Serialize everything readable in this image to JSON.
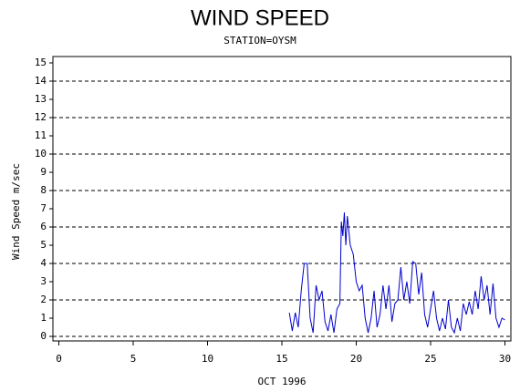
{
  "chart_data": {
    "type": "line",
    "title": "WIND SPEED",
    "subtitle": "STATION=OYSM",
    "ylabel": "Wind Speed m/sec",
    "xlabel": "OCT 1996",
    "xlim": [
      -0.4,
      30.4
    ],
    "ylim": [
      -0.25,
      15.35
    ],
    "xticks": [
      0,
      5,
      10,
      15,
      20,
      25,
      30
    ],
    "yticks": [
      0,
      1,
      2,
      3,
      4,
      5,
      6,
      7,
      8,
      9,
      10,
      11,
      12,
      13,
      14,
      15
    ],
    "ygrid": [
      0,
      2,
      4,
      6,
      8,
      10,
      12,
      14
    ],
    "x": [
      15.5,
      15.7,
      15.9,
      16.1,
      16.3,
      16.5,
      16.7,
      16.9,
      17.1,
      17.3,
      17.5,
      17.7,
      17.9,
      18.1,
      18.3,
      18.5,
      18.7,
      18.9,
      19.0,
      19.1,
      19.2,
      19.3,
      19.4,
      19.6,
      19.8,
      20.0,
      20.2,
      20.4,
      20.6,
      20.8,
      21.0,
      21.2,
      21.4,
      21.6,
      21.8,
      22.0,
      22.2,
      22.4,
      22.6,
      22.8,
      23.0,
      23.2,
      23.4,
      23.6,
      23.8,
      24.0,
      24.2,
      24.4,
      24.6,
      24.8,
      25.0,
      25.2,
      25.4,
      25.6,
      25.8,
      26.0,
      26.2,
      26.4,
      26.6,
      26.8,
      27.0,
      27.2,
      27.4,
      27.6,
      27.8,
      28.0,
      28.2,
      28.4,
      28.6,
      28.8,
      29.0,
      29.2,
      29.4,
      29.6,
      29.8,
      30.0
    ],
    "series": [
      {
        "color": "#0000cc",
        "values": [
          1.3,
          0.3,
          1.3,
          0.5,
          2.5,
          4.0,
          4.0,
          1.0,
          0.2,
          2.8,
          2.0,
          2.5,
          0.8,
          0.3,
          1.2,
          0.2,
          1.5,
          1.8,
          6.3,
          5.5,
          6.8,
          5.0,
          6.6,
          5.0,
          4.5,
          3.0,
          2.5,
          2.8,
          1.0,
          0.2,
          1.0,
          2.5,
          0.5,
          1.2,
          2.8,
          1.5,
          2.8,
          0.8,
          1.8,
          2.0,
          3.8,
          2.0,
          3.0,
          1.8,
          4.1,
          4.0,
          2.3,
          3.5,
          1.2,
          0.5,
          1.5,
          2.5,
          1.0,
          0.3,
          1.0,
          0.4,
          2.0,
          0.5,
          0.2,
          1.0,
          0.3,
          1.8,
          1.2,
          1.9,
          1.2,
          2.5,
          1.5,
          3.3,
          2.0,
          2.8,
          1.2,
          2.9,
          1.0,
          0.5,
          1.0,
          0.9
        ]
      }
    ]
  }
}
